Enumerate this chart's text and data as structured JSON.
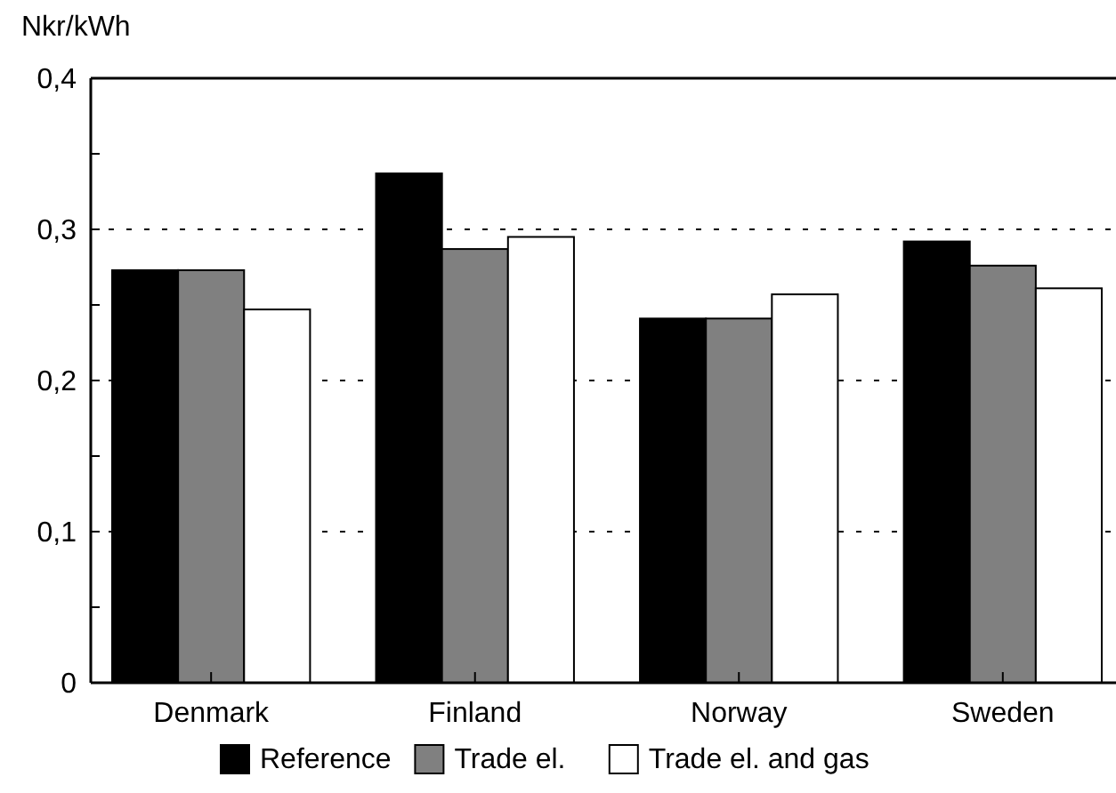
{
  "chart_data": {
    "type": "bar",
    "ylabel": "Nkr/kWh",
    "categories": [
      "Denmark",
      "Finland",
      "Norway",
      "Sweden"
    ],
    "series": [
      {
        "name": "Reference",
        "color": "#000000",
        "values": [
          0.273,
          0.337,
          0.241,
          0.292
        ]
      },
      {
        "name": "Trade el.",
        "color": "#808080",
        "values": [
          0.273,
          0.287,
          0.241,
          0.276
        ]
      },
      {
        "name": "Trade el. and gas",
        "color": "#ffffff",
        "values": [
          0.247,
          0.295,
          0.257,
          0.261
        ]
      }
    ],
    "ylim": [
      0,
      0.4
    ],
    "yticks": [
      {
        "value": 0,
        "label": "0"
      },
      {
        "value": 0.05,
        "label": null
      },
      {
        "value": 0.1,
        "label": "0,1"
      },
      {
        "value": 0.15,
        "label": null
      },
      {
        "value": 0.2,
        "label": "0,2"
      },
      {
        "value": 0.25,
        "label": null
      },
      {
        "value": 0.3,
        "label": "0,3"
      },
      {
        "value": 0.35,
        "label": null
      },
      {
        "value": 0.4,
        "label": "0,4"
      }
    ],
    "grid": "y",
    "legend": "bottom"
  }
}
